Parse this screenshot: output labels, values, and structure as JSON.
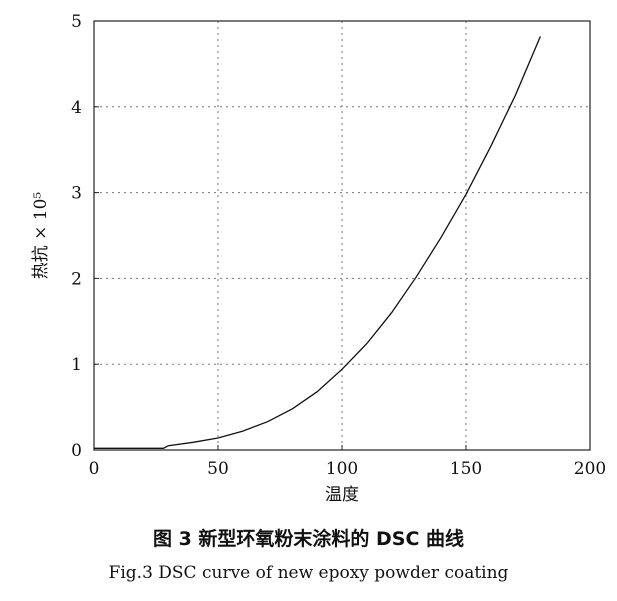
{
  "chart_data": {
    "type": "line",
    "xlabel": "温度",
    "ylabel": "热抗 × 10⁵",
    "xlim": [
      0,
      200
    ],
    "ylim": [
      0,
      5
    ],
    "xticks": [
      "0",
      "50",
      "100",
      "150",
      "200"
    ],
    "yticks": [
      "0",
      "1",
      "2",
      "3",
      "4",
      "5"
    ],
    "grid": true,
    "series": [
      {
        "x": [
          0,
          10,
          20,
          28,
          30,
          40,
          50,
          60,
          70,
          80,
          90,
          100,
          110,
          120,
          130,
          140,
          150,
          160,
          170,
          180
        ],
        "y": [
          0.02,
          0.02,
          0.02,
          0.02,
          0.05,
          0.09,
          0.14,
          0.22,
          0.33,
          0.48,
          0.68,
          0.94,
          1.24,
          1.6,
          2.02,
          2.48,
          2.98,
          3.54,
          4.14,
          4.82
        ]
      }
    ]
  },
  "caption": {
    "cn": "图 3   新型环氧粉末涂料的 DSC 曲线",
    "en": "Fig.3   DSC curve of new epoxy powder coating"
  }
}
